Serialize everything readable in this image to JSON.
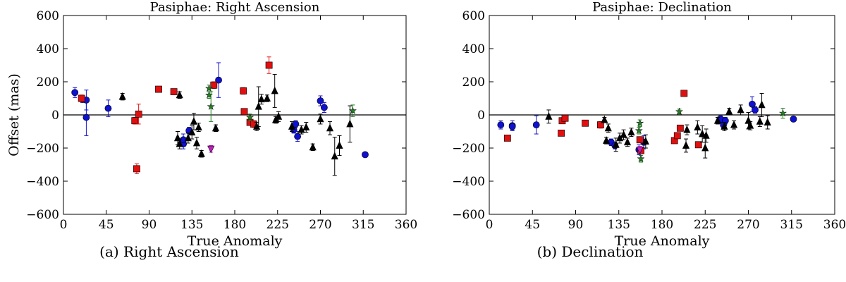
{
  "colors": {
    "blue_circle": "#1010d0",
    "red_square": "#e01010",
    "black_triangle": "#000000",
    "green_star": "#208020",
    "magenta_triangle": "#c020c0"
  },
  "marker_legend": {
    "blue_circle": "circle",
    "red_square": "square",
    "black_triangle": "triangle-up",
    "green_star": "star",
    "magenta_triangle": "triangle-down"
  },
  "captions": [
    "(a)  Right Ascension",
    "(b)  Declination"
  ],
  "chart_data": [
    {
      "type": "scatter",
      "title": "Pasiphae: Right Ascension",
      "xlabel": "True Anomaly",
      "ylabel": "Offset (mas)",
      "xlim": [
        0,
        360
      ],
      "ylim": [
        -600,
        600
      ],
      "xticks": [
        0,
        45,
        90,
        135,
        180,
        225,
        270,
        315,
        360
      ],
      "yticks": [
        -600,
        -400,
        -200,
        0,
        200,
        400,
        600
      ],
      "series": [
        {
          "name": "blue_circle",
          "points": [
            [
              12,
              135,
              30
            ],
            [
              20,
              95,
              20
            ],
            [
              24,
              -15,
              110
            ],
            [
              24,
              90,
              60
            ],
            [
              47,
              40,
              50
            ],
            [
              126,
              -175,
              30
            ],
            [
              126,
              -150,
              35
            ],
            [
              132,
              -95,
              20
            ],
            [
              163,
              210,
              105
            ],
            [
              242,
              -90,
              20
            ],
            [
              244,
              -55,
              20
            ],
            [
              246,
              -130,
              30
            ],
            [
              270,
              85,
              30
            ],
            [
              274,
              45,
              30
            ],
            [
              317,
              -240,
              15
            ]
          ]
        },
        {
          "name": "red_square",
          "points": [
            [
              19,
              100,
              20
            ],
            [
              75,
              -35,
              20
            ],
            [
              77,
              -325,
              30
            ],
            [
              79,
              5,
              60
            ],
            [
              100,
              155,
              10
            ],
            [
              116,
              140,
              10
            ],
            [
              158,
              180,
              20
            ],
            [
              189,
              145,
              20
            ],
            [
              190,
              20,
              10
            ],
            [
              196,
              -45,
              15
            ],
            [
              200,
              -55,
              20
            ],
            [
              216,
              300,
              50
            ]
          ]
        },
        {
          "name": "black_triangle",
          "points": [
            [
              62,
              110,
              20
            ],
            [
              120,
              -140,
              40
            ],
            [
              122,
              -175,
              30
            ],
            [
              122,
              120,
              20
            ],
            [
              131,
              -140,
              30
            ],
            [
              135,
              -105,
              40
            ],
            [
              137,
              -40,
              50
            ],
            [
              140,
              -170,
              35
            ],
            [
              142,
              -75,
              25
            ],
            [
              145,
              -235,
              20
            ],
            [
              160,
              -80,
              20
            ],
            [
              203,
              -70,
              25
            ],
            [
              205,
              50,
              120
            ],
            [
              208,
              95,
              30
            ],
            [
              214,
              100,
              20
            ],
            [
              222,
              145,
              100
            ],
            [
              223,
              -30,
              20
            ],
            [
              226,
              -10,
              30
            ],
            [
              240,
              -70,
              30
            ],
            [
              250,
              -90,
              25
            ],
            [
              255,
              -75,
              30
            ],
            [
              262,
              -195,
              20
            ],
            [
              270,
              -25,
              30
            ],
            [
              280,
              -80,
              40
            ],
            [
              285,
              -250,
              115
            ],
            [
              290,
              -185,
              60
            ],
            [
              301,
              -55,
              110
            ]
          ]
        },
        {
          "name": "green_star",
          "points": [
            [
              153,
              160,
              20
            ],
            [
              153,
              120,
              20
            ],
            [
              155,
              50,
              90
            ],
            [
              196,
              -15,
              20
            ],
            [
              304,
              25,
              35
            ]
          ]
        },
        {
          "name": "magenta_triangle",
          "points": [
            [
              155,
              -205,
              20
            ]
          ]
        }
      ]
    },
    {
      "type": "scatter",
      "title": "Pasiphae: Declination",
      "xlabel": "True Anomaly",
      "ylabel": "",
      "xlim": [
        0,
        360
      ],
      "ylim": [
        -600,
        600
      ],
      "xticks": [
        0,
        45,
        90,
        135,
        180,
        225,
        270,
        315,
        360
      ],
      "yticks": [
        -600,
        -400,
        -200,
        0,
        200,
        400,
        600
      ],
      "series": [
        {
          "name": "blue_circle",
          "points": [
            [
              12,
              -60,
              25
            ],
            [
              24,
              -65,
              30
            ],
            [
              24,
              -70,
              20
            ],
            [
              49,
              -60,
              55
            ],
            [
              127,
              -165,
              20
            ],
            [
              131,
              -185,
              20
            ],
            [
              156,
              -210,
              30
            ],
            [
              161,
              -165,
              40
            ],
            [
              241,
              -25,
              20
            ],
            [
              244,
              -60,
              20
            ],
            [
              246,
              -35,
              20
            ],
            [
              274,
              65,
              45
            ],
            [
              277,
              30,
              20
            ],
            [
              317,
              -25,
              10
            ]
          ]
        },
        {
          "name": "red_square",
          "points": [
            [
              19,
              -140,
              15
            ],
            [
              75,
              -110,
              15
            ],
            [
              76,
              -35,
              15
            ],
            [
              79,
              -20,
              10
            ],
            [
              100,
              -50,
              10
            ],
            [
              116,
              -60,
              20
            ],
            [
              157,
              -150,
              15
            ],
            [
              158,
              -215,
              20
            ],
            [
              193,
              -155,
              15
            ],
            [
              196,
              -125,
              15
            ],
            [
              199,
              -80,
              15
            ],
            [
              203,
              130,
              10
            ],
            [
              218,
              -180,
              10
            ]
          ]
        },
        {
          "name": "black_triangle",
          "points": [
            [
              62,
              -10,
              40
            ],
            [
              120,
              -30,
              15
            ],
            [
              122,
              -155,
              20
            ],
            [
              124,
              -80,
              25
            ],
            [
              132,
              -180,
              40
            ],
            [
              136,
              -140,
              30
            ],
            [
              140,
              -120,
              30
            ],
            [
              144,
              -165,
              25
            ],
            [
              148,
              -105,
              25
            ],
            [
              163,
              -160,
              40
            ],
            [
              205,
              -185,
              40
            ],
            [
              206,
              -90,
              30
            ],
            [
              217,
              -75,
              40
            ],
            [
              222,
              -115,
              50
            ],
            [
              225,
              -200,
              60
            ],
            [
              226,
              -125,
              40
            ],
            [
              238,
              -35,
              20
            ],
            [
              245,
              -70,
              25
            ],
            [
              250,
              20,
              20
            ],
            [
              255,
              -60,
              25
            ],
            [
              262,
              30,
              30
            ],
            [
              270,
              -35,
              50
            ],
            [
              272,
              -65,
              25
            ],
            [
              282,
              -40,
              30
            ],
            [
              284,
              60,
              70
            ],
            [
              290,
              -45,
              40
            ]
          ]
        },
        {
          "name": "green_star",
          "points": [
            [
              156,
              -95,
              20
            ],
            [
              157,
              -50,
              20
            ],
            [
              158,
              -265,
              20
            ],
            [
              198,
              20,
              15
            ],
            [
              306,
              10,
              30
            ]
          ]
        },
        {
          "name": "magenta_triangle",
          "points": [
            [
              157,
              -210,
              20
            ]
          ]
        }
      ]
    }
  ]
}
